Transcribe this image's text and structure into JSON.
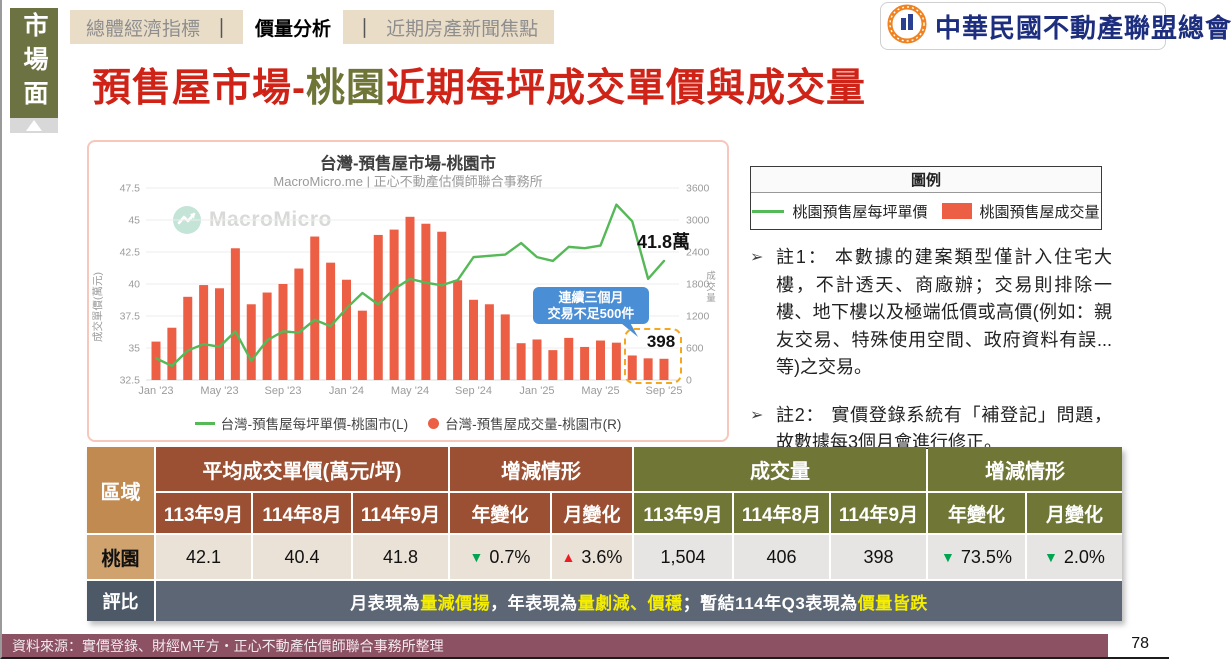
{
  "slide": {
    "side_tab": "市場面",
    "nav": {
      "separator": "｜",
      "items": [
        {
          "label": "總體經濟指標",
          "active": false
        },
        {
          "label": "價量分析",
          "active": true
        },
        {
          "label": "近期房產新聞焦點",
          "active": false
        }
      ]
    },
    "logo_text": "中華民國不動產聯盟總會",
    "title": {
      "part1": "預售屋市場-",
      "part2": "桃園",
      "part3": "近期每坪成交單價與成交量"
    },
    "source": "資料來源：實價登錄、財經M平方‧正心不動產估價師聯合事務所整理",
    "page_number": "78"
  },
  "chart_data": {
    "type": "bar+line",
    "title": "台灣-預售屋市場-桃園市",
    "subtitle": "MacroMicro.me | 正心不動產估價師聯合事務所",
    "watermark": "MacroMicro",
    "x": [
      "Jan '23",
      "Feb '23",
      "Mar '23",
      "Apr '23",
      "May '23",
      "Jun '23",
      "Jul '23",
      "Aug '23",
      "Sep '23",
      "Oct '23",
      "Nov '23",
      "Dec '23",
      "Jan '24",
      "Feb '24",
      "Mar '24",
      "Apr '24",
      "May '24",
      "Jun '24",
      "Jul '24",
      "Aug '24",
      "Sep '24",
      "Oct '24",
      "Nov '24",
      "Dec '24",
      "Jan '25",
      "Feb '25",
      "Mar '25",
      "Apr '25",
      "May '25",
      "Jun '25",
      "Jul '25",
      "Aug '25",
      "Sep '25"
    ],
    "x_tick_every": 4,
    "left_axis": {
      "label": "成交單價(萬元)",
      "range": [
        32.5,
        47.5
      ],
      "ticks": [
        47.5,
        45,
        42.5,
        40,
        37.5,
        35,
        32.5
      ]
    },
    "right_axis": {
      "label": "成交量",
      "range": [
        0,
        3600
      ],
      "ticks": [
        3600,
        3000,
        2400,
        1800,
        1200,
        600,
        0
      ]
    },
    "series": [
      {
        "name": "台灣-預售屋每坪單價-桃園市(L)",
        "type": "line",
        "axis": "left",
        "color": "#55b957",
        "values": [
          34.2,
          33.6,
          34.8,
          35.3,
          35.1,
          36.3,
          34.0,
          35.6,
          36.3,
          36.2,
          37.2,
          36.7,
          38.1,
          39.3,
          38.4,
          39.6,
          40.4,
          40.1,
          39.9,
          40.3,
          42.1,
          42.2,
          42.3,
          43.2,
          42.1,
          41.8,
          42.9,
          42.8,
          43.0,
          46.2,
          44.9,
          40.4,
          41.8
        ]
      },
      {
        "name": "台灣-預售屋成交量-桃園市(R)",
        "type": "bar",
        "axis": "right",
        "color": "#ec5f44",
        "values": [
          720,
          980,
          1560,
          1780,
          1720,
          2470,
          1420,
          1640,
          1800,
          2090,
          2690,
          2200,
          1880,
          1300,
          2720,
          2820,
          3060,
          2930,
          2780,
          1870,
          1504,
          1420,
          1230,
          690,
          760,
          560,
          790,
          620,
          740,
          700,
          460,
          406,
          398
        ]
      }
    ],
    "annotations": {
      "last_price_label": "41.8萬",
      "callout_line1": "連續三個月",
      "callout_line2": "交易不足500件",
      "last_volume_label": "398"
    }
  },
  "legend_panel": {
    "title": "圖例",
    "items": [
      {
        "label": "桃園預售屋每坪單價",
        "type": "line",
        "color": "#55b957"
      },
      {
        "label": "桃園預售屋成交量",
        "type": "bar",
        "color": "#ec5f44"
      }
    ]
  },
  "notes": [
    {
      "label": "註1：",
      "text": "本數據的建案類型僅計入住宅大樓，不計透天、商廠辦；交易則排除一樓、地下樓以及極端低價或高價(例如：親友交易、特殊使用空間、政府資料有誤...等)之交易。"
    },
    {
      "label": "註2：",
      "text": "實價登錄系統有「補登記」問題，故數據每3個月會進行修正。"
    }
  ],
  "table": {
    "region_header": "區域",
    "groups": [
      {
        "title": "平均成交單價(萬元/坪)",
        "cols": [
          "113年9月",
          "114年8月",
          "114年9月"
        ]
      },
      {
        "title": "增減情形",
        "cols": [
          "年變化",
          "月變化"
        ]
      },
      {
        "title": "成交量",
        "cols": [
          "113年9月",
          "114年8月",
          "114年9月"
        ]
      },
      {
        "title": "增減情形",
        "cols": [
          "年變化",
          "月變化"
        ]
      }
    ],
    "row": {
      "region": "桃園",
      "price": [
        "42.1",
        "40.4",
        "41.8"
      ],
      "price_yoy": {
        "dir": "down",
        "value": "0.7%"
      },
      "price_mom": {
        "dir": "up",
        "value": "3.6%"
      },
      "volume": [
        "1,504",
        "406",
        "398"
      ],
      "volume_yoy": {
        "dir": "down",
        "value": "73.5%"
      },
      "volume_mom": {
        "dir": "down",
        "value": "2.0%"
      }
    },
    "rating_label": "評比",
    "rating_segments": [
      {
        "text": "月表現為",
        "highlight": false
      },
      {
        "text": "量減價揚",
        "highlight": true
      },
      {
        "text": "，年表現為",
        "highlight": false
      },
      {
        "text": "量劇減、價穩",
        "highlight": true
      },
      {
        "text": "；暫結114年Q3表現為",
        "highlight": false
      },
      {
        "text": "價量皆跌",
        "highlight": true
      }
    ]
  }
}
